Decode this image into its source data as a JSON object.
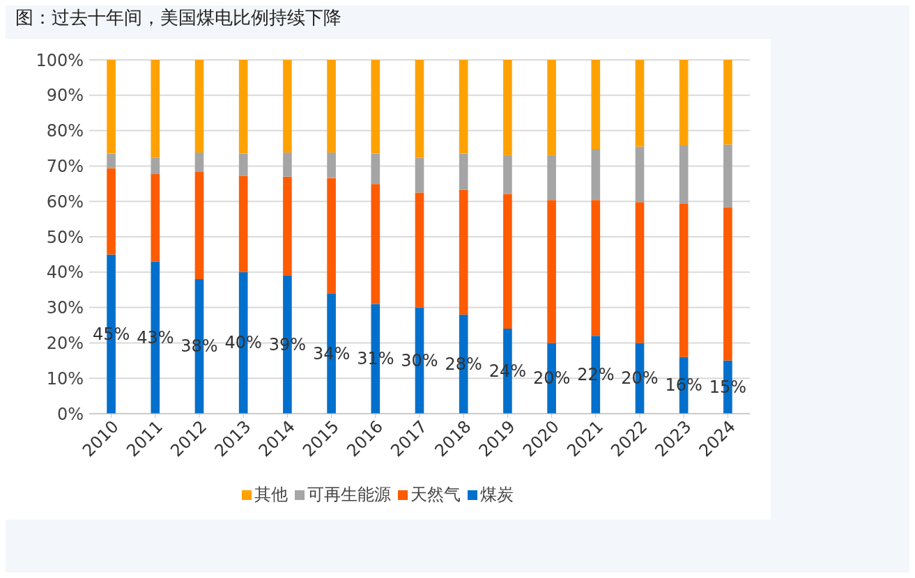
{
  "chart_data": {
    "type": "bar",
    "title": "图：过去十年间，美国煤电比例持续下降",
    "categories": [
      "2010",
      "2011",
      "2012",
      "2013",
      "2014",
      "2015",
      "2016",
      "2017",
      "2018",
      "2019",
      "2020",
      "2021",
      "2022",
      "2023",
      "2024"
    ],
    "stacked": true,
    "series": [
      {
        "name": "煤炭",
        "color": "#0070cc",
        "values": [
          45,
          43,
          38,
          40,
          39,
          34,
          31,
          30,
          28,
          24,
          20,
          22,
          20,
          16,
          15
        ],
        "value_labels": [
          "45%",
          "43%",
          "38%",
          "40%",
          "39%",
          "34%",
          "31%",
          "30%",
          "28%",
          "24%",
          "20%",
          "22%",
          "20%",
          "16%",
          "15%"
        ]
      },
      {
        "name": "天然气",
        "color": "#ff5b00",
        "values": [
          24.4,
          24.7,
          30.3,
          27.2,
          28.0,
          32.6,
          33.9,
          32.5,
          35.2,
          38.1,
          40.4,
          38.4,
          39.8,
          43.4,
          43.3
        ]
      },
      {
        "name": "可再生能源",
        "color": "#a5a5a5",
        "values": [
          4.1,
          4.6,
          5.5,
          6.3,
          6.8,
          7.2,
          8.6,
          9.8,
          10.3,
          11.0,
          12.7,
          14.4,
          15.7,
          16.4,
          17.8
        ]
      },
      {
        "name": "其他",
        "color": "#ffa200",
        "values": [
          26.5,
          27.7,
          26.2,
          26.5,
          26.2,
          26.2,
          26.5,
          27.7,
          26.5,
          26.9,
          26.9,
          25.2,
          24.5,
          24.2,
          23.9
        ]
      }
    ],
    "ylim": [
      0,
      100
    ],
    "yticks": [
      {
        "value": 0,
        "label": "0%"
      },
      {
        "value": 10,
        "label": "10%"
      },
      {
        "value": 20,
        "label": "20%"
      },
      {
        "value": 30,
        "label": "30%"
      },
      {
        "value": 40,
        "label": "40%"
      },
      {
        "value": 50,
        "label": "50%"
      },
      {
        "value": 60,
        "label": "60%"
      },
      {
        "value": 70,
        "label": "70%"
      },
      {
        "value": 80,
        "label": "80%"
      },
      {
        "value": 90,
        "label": "90%"
      },
      {
        "value": 100,
        "label": "100%"
      }
    ],
    "grid": "y",
    "legend": "bottom"
  }
}
